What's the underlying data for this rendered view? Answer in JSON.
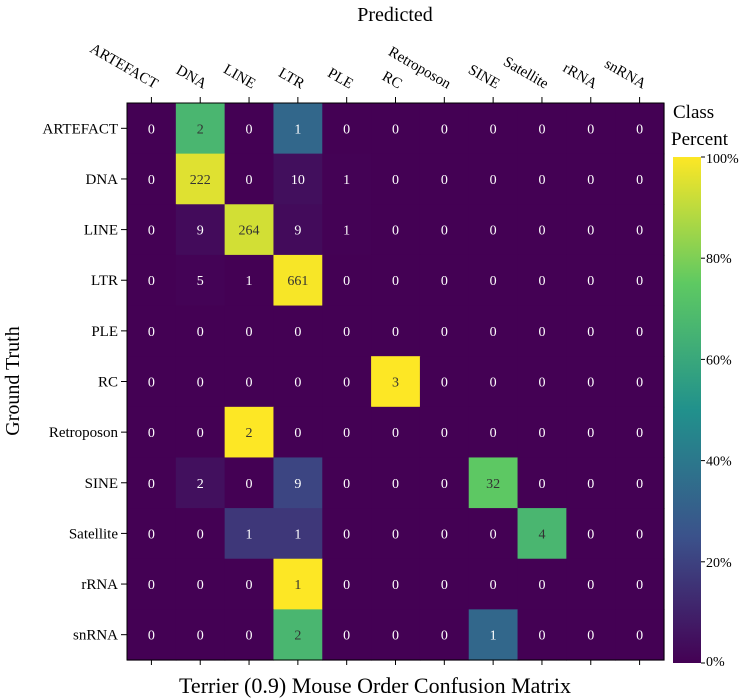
{
  "chart_data": {
    "type": "heatmap",
    "title": "Terrier (0.9) Mouse Order Confusion Matrix",
    "xlabel": "Predicted",
    "ylabel": "Ground Truth",
    "colorbar_title_1": "Class",
    "colorbar_title_2": "Percent",
    "colorbar_ticks": [
      "0%",
      "20%",
      "40%",
      "60%",
      "80%",
      "100%"
    ],
    "colormap": [
      "#440154",
      "#3b528b",
      "#21918c",
      "#5ec962",
      "#fde725"
    ],
    "text_color_dark": "#333333",
    "text_color_light": "#ffffff",
    "x_labels": [
      "ARTEFACT",
      "DNA",
      "LINE",
      "LTR",
      "PLE",
      "RC",
      "Retroposon",
      "SINE",
      "Satellite",
      "rRNA",
      "snRNA"
    ],
    "y_labels": [
      "ARTEFACT",
      "DNA",
      "LINE",
      "LTR",
      "PLE",
      "RC",
      "Retroposon",
      "SINE",
      "Satellite",
      "rRNA",
      "snRNA"
    ],
    "values": [
      [
        0,
        2,
        0,
        1,
        0,
        0,
        0,
        0,
        0,
        0,
        0
      ],
      [
        0,
        222,
        0,
        10,
        1,
        0,
        0,
        0,
        0,
        0,
        0
      ],
      [
        0,
        9,
        264,
        9,
        1,
        0,
        0,
        0,
        0,
        0,
        0
      ],
      [
        0,
        5,
        1,
        661,
        0,
        0,
        0,
        0,
        0,
        0,
        0
      ],
      [
        0,
        0,
        0,
        0,
        0,
        0,
        0,
        0,
        0,
        0,
        0
      ],
      [
        0,
        0,
        0,
        0,
        0,
        3,
        0,
        0,
        0,
        0,
        0
      ],
      [
        0,
        0,
        2,
        0,
        0,
        0,
        0,
        0,
        0,
        0,
        0
      ],
      [
        0,
        2,
        0,
        9,
        0,
        0,
        0,
        32,
        0,
        0,
        0
      ],
      [
        0,
        0,
        1,
        1,
        0,
        0,
        0,
        0,
        4,
        0,
        0
      ],
      [
        0,
        0,
        0,
        1,
        0,
        0,
        0,
        0,
        0,
        0,
        0
      ],
      [
        0,
        0,
        0,
        2,
        0,
        0,
        0,
        1,
        0,
        0,
        0
      ]
    ]
  }
}
